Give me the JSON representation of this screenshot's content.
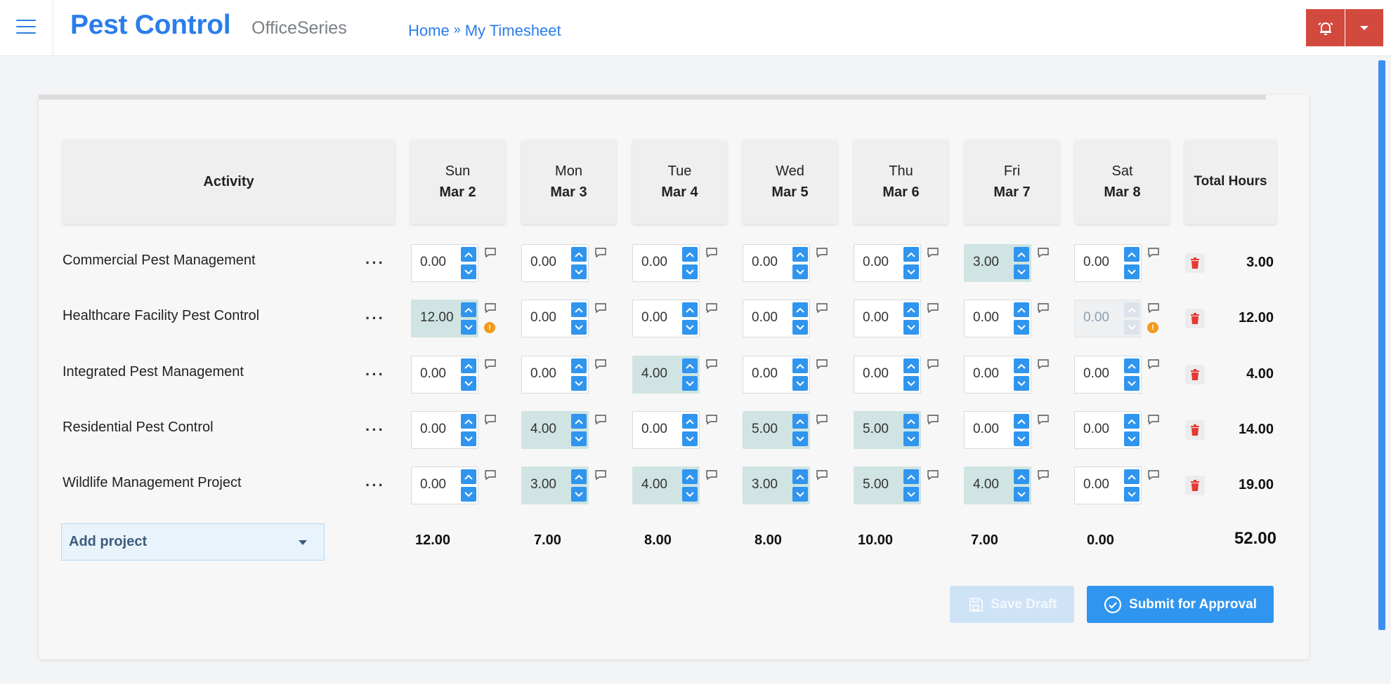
{
  "header": {
    "brand": "Pest Control",
    "suite": "OfficeSeries",
    "breadcrumb": {
      "home": "Home",
      "separator": "»",
      "current": "My Timesheet"
    }
  },
  "colors": {
    "accent": "#2f95ee",
    "brand": "#2b7de9",
    "danger": "#d24a3d",
    "filled_cell": "#cfe4e3",
    "warning": "#f39a1a"
  },
  "table": {
    "activity_header": "Activity",
    "total_header": "Total Hours",
    "days": [
      {
        "dow": "Sun",
        "date": "Mar 2"
      },
      {
        "dow": "Mon",
        "date": "Mar 3"
      },
      {
        "dow": "Tue",
        "date": "Mar 4"
      },
      {
        "dow": "Wed",
        "date": "Mar 5"
      },
      {
        "dow": "Thu",
        "date": "Mar 6"
      },
      {
        "dow": "Fri",
        "date": "Mar 7"
      },
      {
        "dow": "Sat",
        "date": "Mar 8"
      }
    ],
    "rows": [
      {
        "name": "Commercial Pest Management",
        "more": "···",
        "hours": [
          "0.00",
          "0.00",
          "0.00",
          "0.00",
          "0.00",
          "3.00",
          "0.00"
        ],
        "total": "3.00"
      },
      {
        "name": "Healthcare Facility Pest Control",
        "more": "···",
        "hours": [
          "12.00",
          "0.00",
          "0.00",
          "0.00",
          "0.00",
          "0.00",
          "0.00"
        ],
        "total": "12.00"
      },
      {
        "name": "Integrated Pest Management",
        "more": "···",
        "hours": [
          "0.00",
          "0.00",
          "4.00",
          "0.00",
          "0.00",
          "0.00",
          "0.00"
        ],
        "total": "4.00"
      },
      {
        "name": "Residential Pest Control",
        "more": "···",
        "hours": [
          "0.00",
          "4.00",
          "0.00",
          "5.00",
          "5.00",
          "0.00",
          "0.00"
        ],
        "total": "14.00"
      },
      {
        "name": "Wildlife Management Project",
        "more": "···",
        "hours": [
          "0.00",
          "3.00",
          "4.00",
          "3.00",
          "5.00",
          "4.00",
          "0.00"
        ],
        "total": "19.00"
      }
    ],
    "warnings_glyph": "!",
    "column_totals": [
      "12.00",
      "7.00",
      "8.00",
      "8.00",
      "10.00",
      "7.00",
      "0.00"
    ],
    "grand_total": "52.00"
  },
  "add_project": {
    "label": "Add project"
  },
  "actions": {
    "save_draft": "Save Draft",
    "submit": "Submit for Approval"
  }
}
